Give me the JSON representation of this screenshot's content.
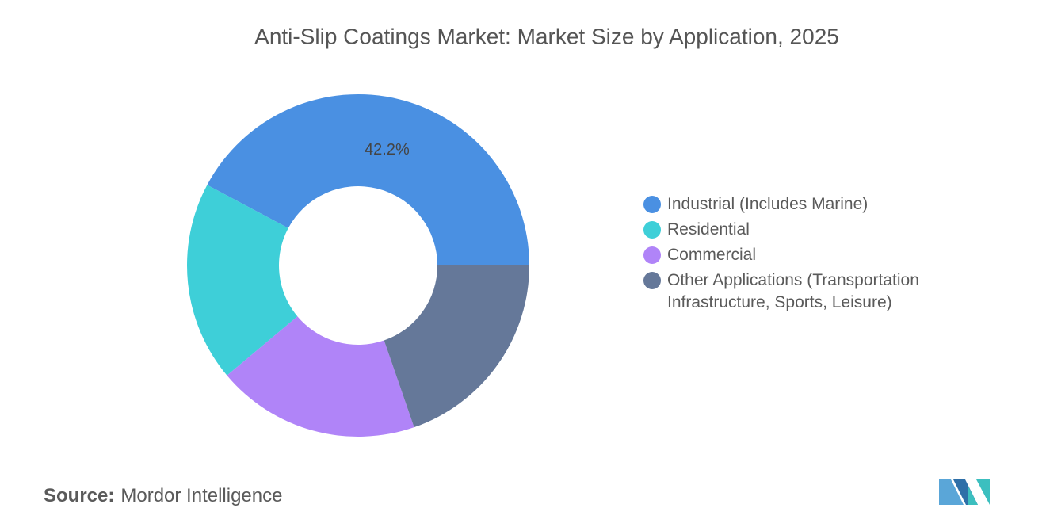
{
  "chart_data": {
    "type": "donut",
    "title": "Anti-Slip Coatings Market: Market Size by Application, 2025",
    "categories": [
      "Industrial (Includes Marine)",
      "Residential",
      "Commercial",
      "Other Applications (Transportation Infrastructure, Sports, Leisure)"
    ],
    "values": [
      42.2,
      18.9,
      19.2,
      19.7
    ],
    "value_labels": [
      "42.2%",
      null,
      null,
      null
    ],
    "colors": [
      "#4a90e2",
      "#3ecfd8",
      "#b084f8",
      "#657899"
    ],
    "legend": "right"
  },
  "source": {
    "label": "Source:",
    "text": "Mordor Intelligence"
  }
}
